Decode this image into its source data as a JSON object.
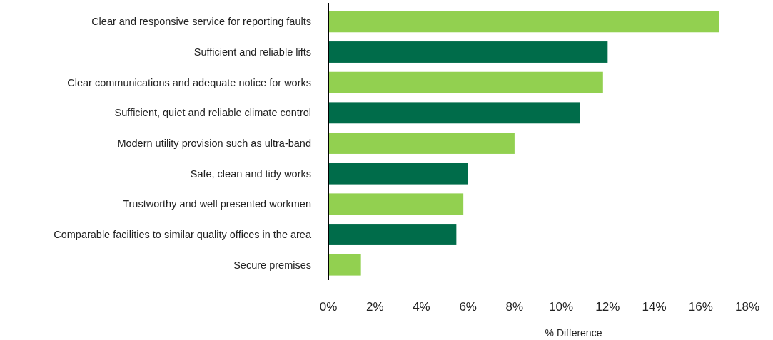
{
  "chart_data": {
    "type": "bar",
    "orientation": "horizontal",
    "xlabel": "% Difference",
    "categories": [
      "Clear and responsive service for reporting faults",
      "Sufficient and reliable lifts",
      "Clear communications and adequate notice for works",
      "Sufficient, quiet and reliable climate control",
      "Modern utility provision such as ultra-band",
      "Safe, clean and tidy works",
      "Trustworthy and well presented workmen",
      "Comparable facilities to similar quality offices in the area",
      "Secure premises"
    ],
    "values": [
      16.8,
      12.0,
      11.8,
      10.8,
      8.0,
      6.0,
      5.8,
      5.5,
      1.4
    ],
    "colors": [
      "#92d050",
      "#006c4a",
      "#92d050",
      "#006c4a",
      "#92d050",
      "#006c4a",
      "#92d050",
      "#006c4a",
      "#92d050"
    ],
    "xlim": [
      0,
      18
    ],
    "xticks": [
      {
        "value": 0,
        "label": "0%"
      },
      {
        "value": 2,
        "label": "2%"
      },
      {
        "value": 4,
        "label": "4%"
      },
      {
        "value": 6,
        "label": "6%"
      },
      {
        "value": 8,
        "label": "8%"
      },
      {
        "value": 10,
        "label": "10%"
      },
      {
        "value": 12,
        "label": "12%"
      },
      {
        "value": 14,
        "label": "14%"
      },
      {
        "value": 16,
        "label": "16%"
      },
      {
        "value": 18,
        "label": "18%"
      }
    ],
    "grid": false
  }
}
